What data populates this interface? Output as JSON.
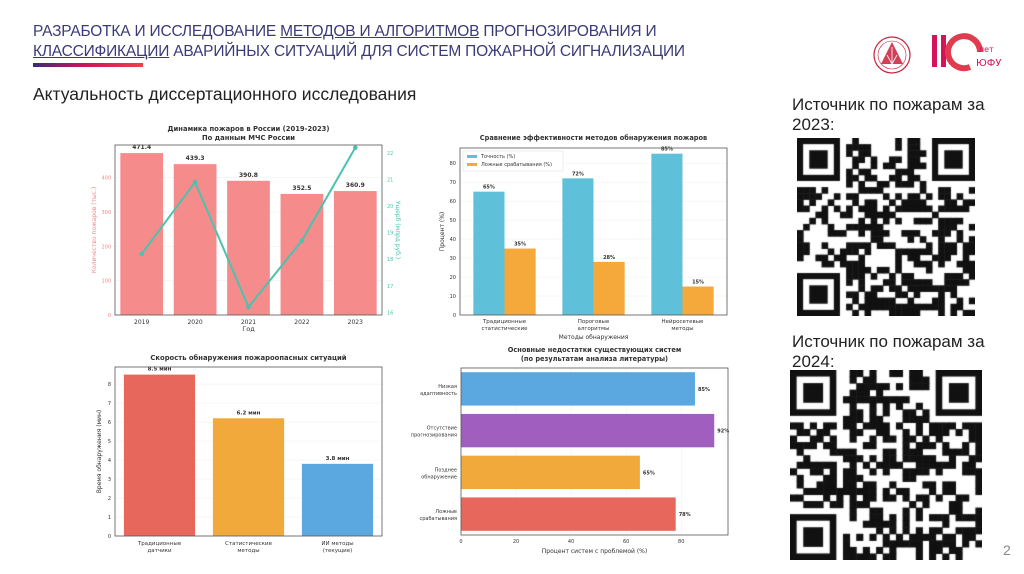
{
  "header": {
    "title_parts": [
      {
        "text": "РАЗРАБОТКА И ИССЛЕДОВАНИЕ ",
        "underline": false
      },
      {
        "text": "МЕТОДОВ И АЛГОРИТМОВ",
        "underline": true
      },
      {
        "text": " ПРОГНОЗИРОВАНИЯ И ",
        "underline": false
      },
      {
        "text": "КЛАССИФИКАЦИИ",
        "underline": true
      },
      {
        "text": " АВАРИЙНЫХ СИТУАЦИЙ ДЛЯ СИСТЕМ ПОЖАРНОЙ СИГНАЛИЗАЦИИ",
        "underline": false
      }
    ],
    "subtitle": "Актуальность диссертационного исследования",
    "logo_text": "110 лет ЮФУ",
    "accent_colors": [
      "#3b2a7a",
      "#d4145a",
      "#ef3f4a"
    ]
  },
  "sources": [
    {
      "label": "Источник по пожарам за 2023:"
    },
    {
      "label": "Источник по пожарам за 2024:"
    }
  ],
  "page_number": "2",
  "chart_data": [
    {
      "type": "bar+line",
      "title": "Динамика пожаров в России (2019-2023)",
      "subtitle": "По данным МЧС России",
      "xlabel": "Год",
      "ylabel": "Количество пожаров (тыс.)",
      "y2label": "Ущерб (млрд руб.)",
      "categories": [
        "2019",
        "2020",
        "2021",
        "2022",
        "2023"
      ],
      "values": [
        471.4,
        439.3,
        390.8,
        352.5,
        360.9
      ],
      "data_labels": [
        "471.4",
        "439.3",
        "390.8",
        "352.5",
        "360.9"
      ],
      "line_values": [
        18.2,
        20.9,
        16.2,
        18.7,
        22.2
      ],
      "ylim": [
        0,
        495
      ],
      "yticks": [
        0,
        100,
        200,
        300,
        400
      ],
      "y2lim": [
        15.9,
        22.3
      ],
      "y2ticks": [
        16,
        17,
        18,
        19,
        20,
        21,
        22
      ],
      "grid": true,
      "colors": {
        "bar": "#f68b8b",
        "line": "#4cc2ae",
        "ylabel": "#f08a8a",
        "y2label": "#4cc2ae"
      }
    },
    {
      "type": "grouped-bar",
      "title": "Сравнение эффективности методов обнаружения пожаров",
      "xlabel": "Методы обнаружения",
      "ylabel": "Процент (%)",
      "categories": [
        [
          "Традиционные",
          "статистические"
        ],
        [
          "Пороговые",
          "алгоритмы"
        ],
        [
          "Нейросетевые",
          "методы"
        ]
      ],
      "series": [
        {
          "name": "Точность (%)",
          "values": [
            65,
            72,
            85
          ],
          "labels": [
            "65%",
            "72%",
            "85%"
          ],
          "color": "#5fc0da"
        },
        {
          "name": "Ложные срабатывания (%)",
          "values": [
            35,
            28,
            15
          ],
          "labels": [
            "35%",
            "28%",
            "15%"
          ],
          "color": "#f5a93a"
        }
      ],
      "ylim": [
        0,
        88
      ],
      "yticks": [
        0,
        10,
        20,
        30,
        40,
        50,
        60,
        70,
        80
      ],
      "grid": true,
      "legend": "top-left"
    },
    {
      "type": "bar",
      "title": "Скорость обнаружения пожароопасных ситуаций",
      "ylabel": "Время обнаружения (мин)",
      "categories": [
        [
          "Традиционные",
          "датчики"
        ],
        [
          "Статистические",
          "методы"
        ],
        [
          "ИИ методы",
          "(текущие)"
        ]
      ],
      "values": [
        8.5,
        6.2,
        3.8
      ],
      "data_labels": [
        "8.5 мин",
        "6.2 мин",
        "3.8 мин"
      ],
      "colors": [
        "#e8675d",
        "#f2a93b",
        "#5aa8df"
      ],
      "ylim": [
        0,
        8.9
      ],
      "yticks": [
        0,
        1,
        2,
        3,
        4,
        5,
        6,
        7,
        8
      ],
      "grid": true
    },
    {
      "type": "barh",
      "title": "Основные недостатки существующих систем",
      "subtitle": "(по результатам анализа литературы)",
      "xlabel": "Процент систем с проблемой (%)",
      "categories": [
        [
          "Низкая",
          "адаптивность"
        ],
        [
          "Отсутствие",
          "прогнозирования"
        ],
        [
          "Позднее",
          "обнаружение"
        ],
        [
          "Ложные",
          "срабатывания"
        ]
      ],
      "values": [
        85,
        92,
        65,
        78
      ],
      "data_labels": [
        "85%",
        "92%",
        "65%",
        "78%"
      ],
      "colors": [
        "#5aa8df",
        "#a05fbf",
        "#f2a93b",
        "#e8675d"
      ],
      "xlim": [
        0,
        97
      ],
      "xticks": [
        0,
        20,
        40,
        60,
        80
      ],
      "grid": true
    }
  ]
}
